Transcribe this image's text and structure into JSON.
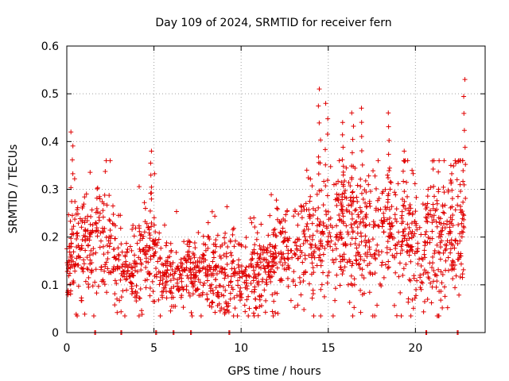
{
  "chart_data": {
    "type": "scatter",
    "title": "Day 109 of 2024, SRMTID for receiver fern",
    "xlabel": "GPS time / hours",
    "ylabel": "SRMTID / TECUs",
    "xlim": [
      0,
      24
    ],
    "ylim": [
      0,
      0.6
    ],
    "x_ticks": [
      0,
      5,
      10,
      15,
      20
    ],
    "x_tick_labels": [
      "0",
      "5",
      "10",
      "15",
      "20"
    ],
    "y_ticks": [
      0,
      0.1,
      0.2,
      0.3,
      0.4,
      0.5,
      0.6
    ],
    "y_tick_labels": [
      "0",
      "0.1",
      "0.2",
      "0.3",
      "0.4",
      "0.5",
      "0.6"
    ],
    "grid": true,
    "marker": "plus",
    "color": "#e00000",
    "profile": [
      [
        0.0,
        0.14
      ],
      [
        0.5,
        0.17
      ],
      [
        1.0,
        0.17
      ],
      [
        1.5,
        0.18
      ],
      [
        2.0,
        0.19
      ],
      [
        2.5,
        0.18
      ],
      [
        3.0,
        0.12
      ],
      [
        3.5,
        0.12
      ],
      [
        4.0,
        0.14
      ],
      [
        4.5,
        0.16
      ],
      [
        5.0,
        0.15
      ],
      [
        5.5,
        0.12
      ],
      [
        6.0,
        0.11
      ],
      [
        6.5,
        0.11
      ],
      [
        7.0,
        0.12
      ],
      [
        7.5,
        0.12
      ],
      [
        8.0,
        0.13
      ],
      [
        8.5,
        0.13
      ],
      [
        9.0,
        0.12
      ],
      [
        9.5,
        0.13
      ],
      [
        10.0,
        0.11
      ],
      [
        10.5,
        0.12
      ],
      [
        11.0,
        0.13
      ],
      [
        11.5,
        0.14
      ],
      [
        12.0,
        0.15
      ],
      [
        12.5,
        0.15
      ],
      [
        13.0,
        0.16
      ],
      [
        13.5,
        0.17
      ],
      [
        14.0,
        0.17
      ],
      [
        14.5,
        0.19
      ],
      [
        15.0,
        0.19
      ],
      [
        15.5,
        0.2
      ],
      [
        16.0,
        0.21
      ],
      [
        16.5,
        0.21
      ],
      [
        17.0,
        0.2
      ],
      [
        17.5,
        0.2
      ],
      [
        18.0,
        0.21
      ],
      [
        18.5,
        0.2
      ],
      [
        19.0,
        0.19
      ],
      [
        19.5,
        0.19
      ],
      [
        20.0,
        0.19
      ],
      [
        20.5,
        0.17
      ],
      [
        21.0,
        0.19
      ],
      [
        21.5,
        0.19
      ],
      [
        22.0,
        0.19
      ],
      [
        22.5,
        0.21
      ],
      [
        22.8,
        0.21
      ]
    ],
    "peaks": [
      {
        "x": 0.3,
        "y": 0.42
      },
      {
        "x": 4.8,
        "y": 0.38
      },
      {
        "x": 14.5,
        "y": 0.51
      },
      {
        "x": 14.9,
        "y": 0.48
      },
      {
        "x": 15.8,
        "y": 0.44
      },
      {
        "x": 16.4,
        "y": 0.46
      },
      {
        "x": 16.9,
        "y": 0.47
      },
      {
        "x": 18.5,
        "y": 0.46
      },
      {
        "x": 19.3,
        "y": 0.38
      },
      {
        "x": 22.1,
        "y": 0.35
      },
      {
        "x": 22.8,
        "y": 0.53
      }
    ],
    "near_zero_markers": [
      1.6,
      3.1,
      5.1,
      6.1,
      7.1,
      9.3,
      20.6,
      22.4
    ],
    "x_range_points": [
      0.0,
      22.8
    ],
    "point_count": 1800
  }
}
